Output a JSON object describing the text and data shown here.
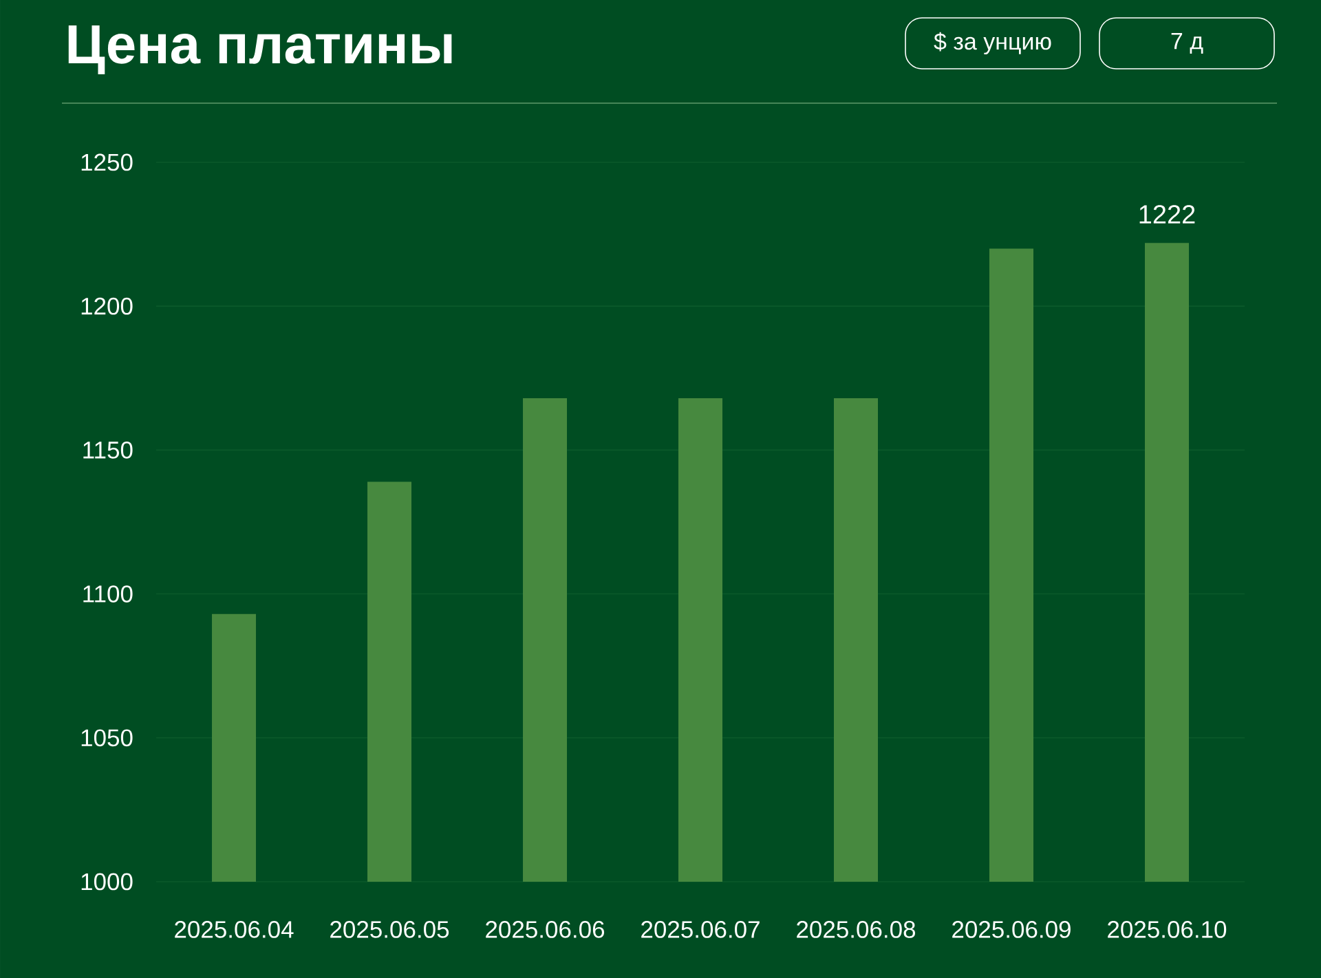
{
  "chart_data": {
    "type": "bar",
    "title": "Цена платины",
    "categories": [
      "2025.06.04",
      "2025.06.05",
      "2025.06.06",
      "2025.06.07",
      "2025.06.08",
      "2025.06.09",
      "2025.06.10"
    ],
    "values": [
      1093,
      1139,
      1168,
      1168,
      1168,
      1220,
      1222
    ],
    "value_labels": [
      null,
      null,
      null,
      null,
      null,
      null,
      "1222"
    ],
    "color": "#47893f",
    "ylim": [
      1000,
      1250
    ],
    "yticks": [
      1000,
      1050,
      1100,
      1150,
      1200,
      1250
    ],
    "grid": "y",
    "annotations": [
      "$ за унцию",
      "7 д"
    ]
  }
}
